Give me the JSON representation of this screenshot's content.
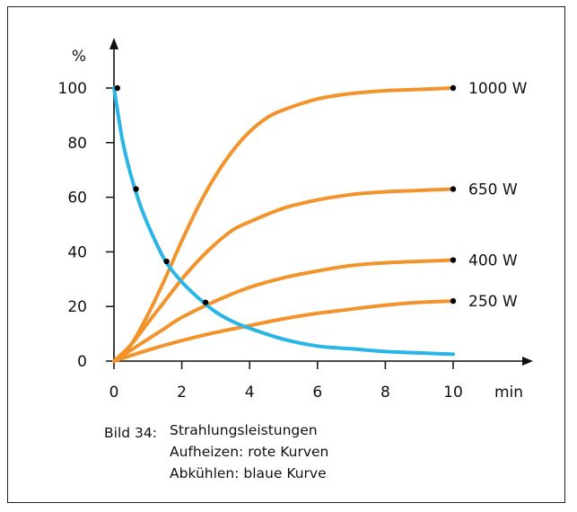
{
  "chart_data": {
    "type": "line",
    "ylabel": "%",
    "xlabel": "min",
    "xlim": [
      0,
      10
    ],
    "ylim": [
      0,
      100
    ],
    "x_ticks": [
      0,
      2,
      4,
      6,
      8,
      10
    ],
    "y_ticks": [
      0,
      20,
      40,
      60,
      80,
      100
    ],
    "grid": false,
    "colors": {
      "heating": "#f2932b",
      "cooling": "#29b6e6",
      "marker": "#000000"
    },
    "series": [
      {
        "name": "1000 W",
        "group": "heating",
        "x": [
          0,
          0.5,
          1,
          1.5,
          2,
          2.5,
          3,
          3.5,
          4,
          4.5,
          5,
          6,
          7,
          8,
          9,
          10
        ],
        "y": [
          0,
          6,
          17,
          30,
          44,
          57,
          68,
          77,
          84,
          89,
          92,
          96,
          98,
          99,
          99.5,
          100
        ]
      },
      {
        "name": "650 W",
        "group": "heating",
        "x": [
          0,
          0.5,
          1,
          1.5,
          2,
          2.5,
          3,
          3.5,
          4,
          5,
          6,
          7,
          8,
          9,
          10
        ],
        "y": [
          0,
          6,
          14,
          22,
          30,
          37,
          43,
          48,
          51,
          56,
          59,
          61,
          62,
          62.5,
          63
        ]
      },
      {
        "name": "400 W",
        "group": "heating",
        "x": [
          0,
          0.5,
          1,
          1.5,
          2,
          3,
          4,
          5,
          6,
          7,
          8,
          9,
          10
        ],
        "y": [
          0,
          4,
          8,
          12,
          16,
          22,
          27,
          30.5,
          33,
          35,
          36,
          36.5,
          37
        ]
      },
      {
        "name": "250 W",
        "group": "heating",
        "x": [
          0,
          1,
          2,
          3,
          4,
          5,
          6,
          7,
          8,
          9,
          10
        ],
        "y": [
          0,
          4,
          7.5,
          10.5,
          13,
          15.5,
          17.5,
          19,
          20.5,
          21.5,
          22
        ]
      },
      {
        "name": "",
        "group": "cooling",
        "x": [
          0,
          0.25,
          0.5,
          0.75,
          1,
          1.5,
          2,
          2.5,
          3,
          3.5,
          4,
          5,
          6,
          7,
          8,
          9,
          10
        ],
        "y": [
          100,
          81,
          68,
          58,
          50,
          37,
          29,
          23,
          18,
          14.5,
          12,
          8,
          5.5,
          4.5,
          3.5,
          3,
          2.5
        ]
      }
    ],
    "points": [
      {
        "x": 0.1,
        "y": 100
      },
      {
        "x": 0.65,
        "y": 63
      },
      {
        "x": 1.55,
        "y": 36.5
      },
      {
        "x": 2.7,
        "y": 21.5
      },
      {
        "x": 10,
        "y": 100
      },
      {
        "x": 10,
        "y": 63
      },
      {
        "x": 10,
        "y": 37
      },
      {
        "x": 10,
        "y": 22
      }
    ],
    "annotations": [
      "1000 W",
      "650 W",
      "400 W",
      "250 W"
    ]
  },
  "caption": {
    "number": "Bild 34:",
    "lines": [
      "Strahlungsleistungen",
      "Aufheizen: rote Kurven",
      "Abkühlen: blaue Kurve"
    ]
  }
}
